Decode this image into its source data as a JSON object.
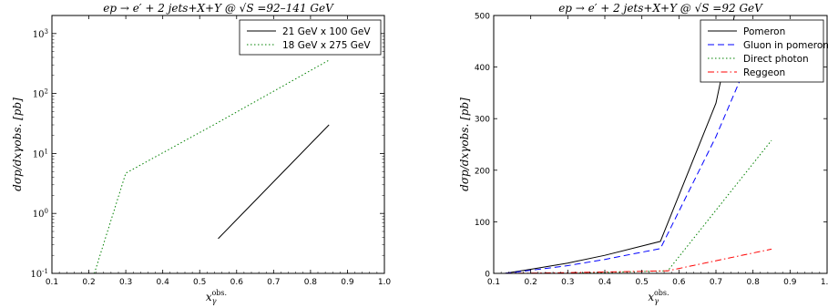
{
  "chart_data": [
    {
      "type": "line",
      "title": "ep → e′ + 2 jets+X+Y @ √S =92–141 GeV",
      "xlabel": "xγobs.",
      "ylabel": "dσp/dxγobs. [pb]",
      "xlim": [
        0.1,
        1.0
      ],
      "ylim": [
        0.1,
        2000
      ],
      "yscale": "log",
      "xticks": [
        "0.1",
        "0.2",
        "0.3",
        "0.4",
        "0.5",
        "0.6",
        "0.7",
        "0.8",
        "0.9",
        "1.0"
      ],
      "yticks": [
        "10-1",
        "100",
        "101",
        "102",
        "103"
      ],
      "legend_position": "top-right",
      "grid": false,
      "series": [
        {
          "name": "21 GeV x 100 GeV",
          "style": "solid",
          "color": "#000000",
          "x": [
            0.55,
            0.85
          ],
          "y": [
            0.38,
            30
          ]
        },
        {
          "name": "18 GeV x 275 GeV",
          "style": "dotted",
          "color": "#008000",
          "x": [
            0.215,
            0.3,
            0.55,
            0.85
          ],
          "y": [
            0.1,
            4.7,
            33,
            360
          ]
        }
      ]
    },
    {
      "type": "line",
      "title": "ep → e′ + 2 jets+X+Y @ √S =92 GeV",
      "xlabel": "xγobs.",
      "ylabel": "dσp/dxγobs. [pb]",
      "xlim": [
        0.1,
        1.0
      ],
      "ylim": [
        0,
        500
      ],
      "yscale": "linear",
      "xticks": [
        "0.1",
        "0.2",
        "0.3",
        "0.4",
        "0.5",
        "0.6",
        "0.7",
        "0.8",
        "0.9",
        "1.0"
      ],
      "yticks": [
        "0",
        "100",
        "200",
        "300",
        "400",
        "500"
      ],
      "legend_position": "top-right",
      "grid": false,
      "series": [
        {
          "name": "Pomeron",
          "style": "solid",
          "color": "#000000",
          "x": [
            0.13,
            0.2,
            0.3,
            0.4,
            0.55,
            0.7,
            0.75
          ],
          "y": [
            0,
            8,
            20,
            35,
            62,
            330,
            500
          ]
        },
        {
          "name": "Gluon in pomeron",
          "style": "dashed",
          "color": "#0000ff",
          "x": [
            0.13,
            0.2,
            0.3,
            0.4,
            0.55,
            0.7,
            0.78
          ],
          "y": [
            0,
            6,
            15,
            27,
            48,
            265,
            400
          ]
        },
        {
          "name": "Direct photon",
          "style": "dotted",
          "color": "#008000",
          "x": [
            0.3,
            0.57,
            0.85
          ],
          "y": [
            0,
            5,
            258
          ]
        },
        {
          "name": "Reggeon",
          "style": "dashdot",
          "color": "#ff0000",
          "x": [
            0.13,
            0.3,
            0.57,
            0.85
          ],
          "y": [
            0,
            1.5,
            5,
            47
          ]
        }
      ]
    }
  ]
}
